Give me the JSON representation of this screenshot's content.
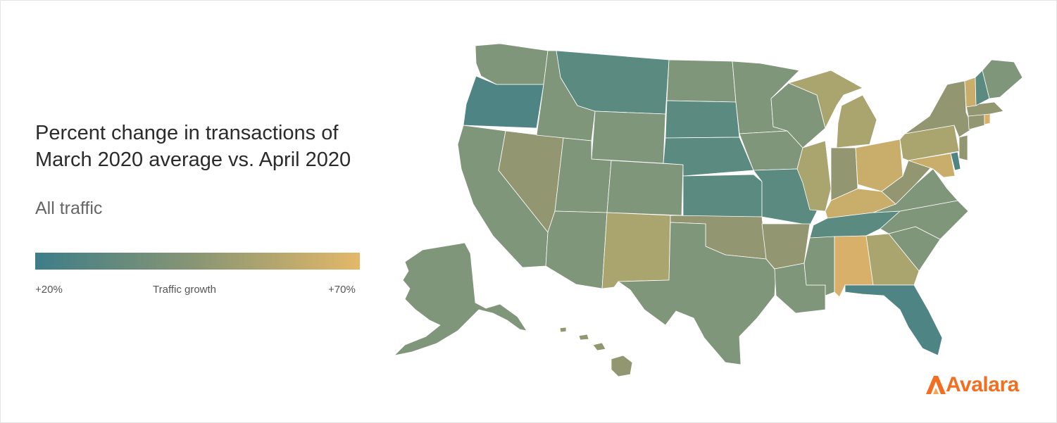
{
  "title_line1": "Percent change in transactions of",
  "title_line2": "March 2020 average vs. April 2020",
  "subtitle": "All traffic",
  "legend": {
    "min_label": "+20%",
    "title": "Traffic growth",
    "max_label": "+70%",
    "min_color": "#3d7d88",
    "mid_color": "#8a9673",
    "max_color": "#e3b869"
  },
  "brand": {
    "name": "Avalara",
    "color": "#f26f21"
  },
  "colors": {
    "teal": "#5a8a80",
    "teal_dark": "#4f8485",
    "sage": "#80967a",
    "olive": "#929671",
    "khaki": "#aaa46f",
    "gold": "#c9ad6b",
    "gold_bright": "#d8b06a"
  }
}
